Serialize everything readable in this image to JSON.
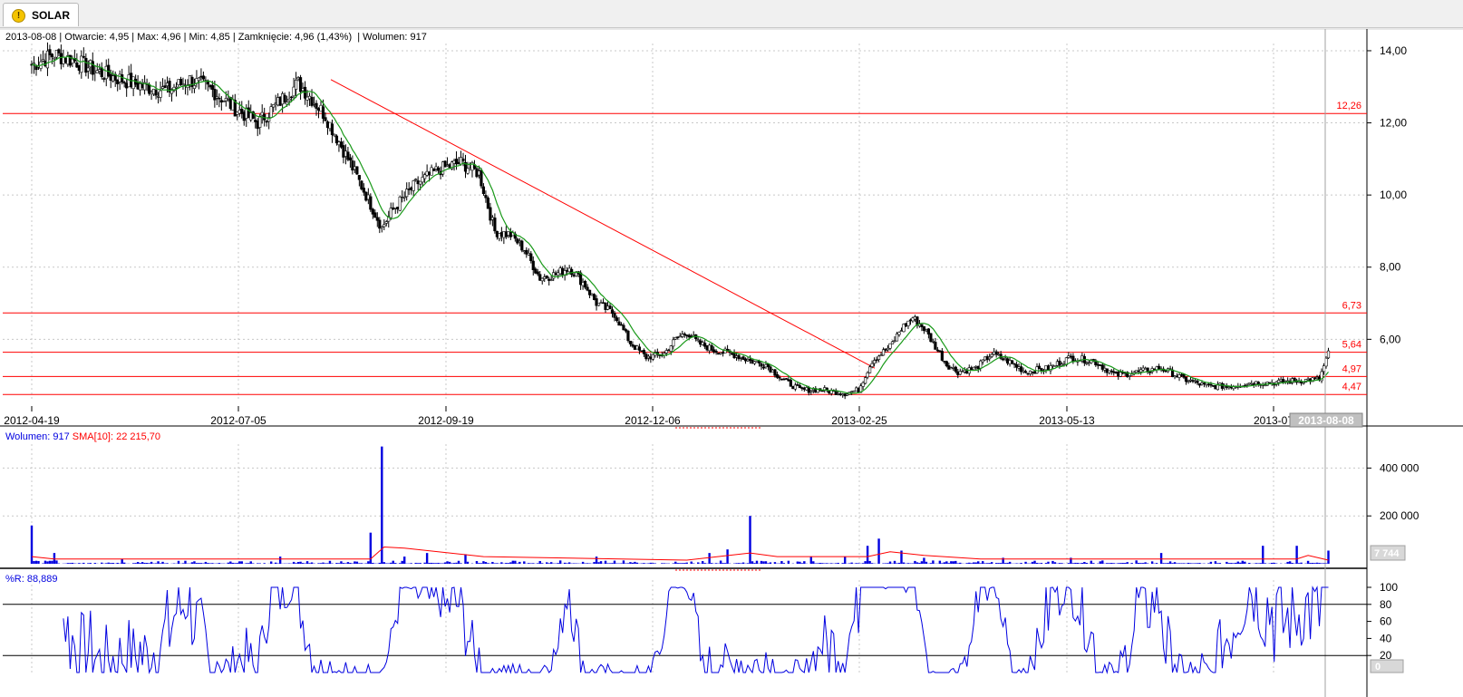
{
  "tab": {
    "label": "SOLAR",
    "icon": "exclamation-icon"
  },
  "info": {
    "date": "2013-08-08",
    "open_label": "Otwarcie:",
    "open": "4,95",
    "max_label": "Max:",
    "max": "4,96",
    "min_label": "Min:",
    "min": "4,85",
    "close_label": "Zamknięcie:",
    "close": "4,96 (1,43%)",
    "volume_label": "Wolumen:",
    "volume": "917"
  },
  "volume_legend": {
    "volume": "Wolumen: 917",
    "sma": "SMA[10]: 22 215,70"
  },
  "wr_legend": "%R: 88,889",
  "colors": {
    "up": "#ffffff",
    "down": "#000000",
    "ma": "#1a9a1a",
    "level": "#ff0000",
    "volume": "#0000e0",
    "sma": "#ff0000",
    "wr": "#0000e0",
    "grid": "#c8c8c8"
  },
  "chart_data": [
    {
      "type": "candlestick",
      "ylim": [
        4.3,
        14.2
      ],
      "y_ticks": [
        "14,00",
        "12,00",
        "10,00",
        "8,00",
        "6,00"
      ],
      "x_ticks": [
        "2012-04-19",
        "2012-07-05",
        "2012-09-19",
        "2012-12-06",
        "2013-02-25",
        "2013-05-13",
        "2013-07"
      ],
      "cursor_label": "2013-08-08",
      "levels": [
        {
          "label": "12,26",
          "value": 12.26
        },
        {
          "label": "6,73",
          "value": 6.73
        },
        {
          "label": "5,64",
          "value": 5.64
        },
        {
          "label": "4,97",
          "value": 4.97
        },
        {
          "label": "4,47",
          "value": 4.47
        }
      ],
      "trendline": {
        "from": [
          "2012-08-01",
          13.2
        ],
        "to": [
          "2013-02-27",
          5.4
        ]
      },
      "ma_color": "green",
      "close_path": [
        [
          0,
          13.6
        ],
        [
          10,
          13.9
        ],
        [
          20,
          13.7
        ],
        [
          30,
          13.4
        ],
        [
          40,
          13.2
        ],
        [
          50,
          13.0
        ],
        [
          60,
          12.9
        ],
        [
          70,
          13.2
        ],
        [
          80,
          12.9
        ],
        [
          90,
          12.4
        ],
        [
          100,
          12.0
        ],
        [
          110,
          12.6
        ],
        [
          118,
          13.1
        ],
        [
          125,
          12.6
        ],
        [
          130,
          12.2
        ],
        [
          135,
          11.6
        ],
        [
          140,
          11.0
        ],
        [
          148,
          10.0
        ],
        [
          155,
          9.1
        ],
        [
          160,
          9.6
        ],
        [
          170,
          10.3
        ],
        [
          180,
          10.7
        ],
        [
          190,
          10.9
        ],
        [
          198,
          10.6
        ],
        [
          205,
          9.0
        ],
        [
          212,
          8.9
        ],
        [
          218,
          8.5
        ],
        [
          225,
          7.7
        ],
        [
          232,
          7.8
        ],
        [
          238,
          8.0
        ],
        [
          245,
          7.5
        ],
        [
          250,
          7.0
        ],
        [
          258,
          6.7
        ],
        [
          265,
          5.9
        ],
        [
          272,
          5.5
        ],
        [
          280,
          5.6
        ],
        [
          285,
          6.0
        ],
        [
          290,
          6.2
        ],
        [
          295,
          5.9
        ],
        [
          302,
          5.7
        ],
        [
          310,
          5.6
        ],
        [
          318,
          5.4
        ],
        [
          325,
          5.3
        ],
        [
          332,
          4.9
        ],
        [
          340,
          4.6
        ],
        [
          350,
          4.6
        ],
        [
          360,
          4.5
        ],
        [
          366,
          4.6
        ],
        [
          372,
          5.4
        ],
        [
          380,
          5.8
        ],
        [
          385,
          6.3
        ],
        [
          390,
          6.6
        ],
        [
          395,
          6.3
        ],
        [
          400,
          5.8
        ],
        [
          405,
          5.3
        ],
        [
          410,
          5.1
        ],
        [
          418,
          5.2
        ],
        [
          425,
          5.6
        ],
        [
          432,
          5.4
        ],
        [
          440,
          5.1
        ],
        [
          450,
          5.2
        ],
        [
          460,
          5.5
        ],
        [
          470,
          5.4
        ],
        [
          480,
          5.0
        ],
        [
          490,
          5.1
        ],
        [
          500,
          5.2
        ],
        [
          510,
          4.9
        ],
        [
          520,
          4.7
        ],
        [
          530,
          4.7
        ],
        [
          540,
          4.8
        ],
        [
          550,
          4.8
        ],
        [
          560,
          4.85
        ],
        [
          570,
          4.9
        ],
        [
          574,
          5.6
        ]
      ]
    },
    {
      "type": "bar",
      "name": "Wolumen",
      "ylim": [
        0,
        500000
      ],
      "y_ticks": [
        "400 000",
        "200 000"
      ],
      "last_label": "7 744",
      "spikes": [
        [
          0,
          160000
        ],
        [
          10,
          45000
        ],
        [
          40,
          20000
        ],
        [
          110,
          30000
        ],
        [
          150,
          130000
        ],
        [
          155,
          490000
        ],
        [
          165,
          30000
        ],
        [
          175,
          45000
        ],
        [
          192,
          40000
        ],
        [
          250,
          30000
        ],
        [
          300,
          45000
        ],
        [
          308,
          60000
        ],
        [
          318,
          200000
        ],
        [
          345,
          30000
        ],
        [
          360,
          30000
        ],
        [
          370,
          75000
        ],
        [
          375,
          105000
        ],
        [
          385,
          55000
        ],
        [
          395,
          25000
        ],
        [
          430,
          25000
        ],
        [
          460,
          25000
        ],
        [
          500,
          45000
        ],
        [
          545,
          75000
        ],
        [
          560,
          75000
        ],
        [
          574,
          55000
        ]
      ],
      "sma": [
        [
          0,
          30000
        ],
        [
          10,
          20000
        ],
        [
          150,
          20000
        ],
        [
          156,
          70000
        ],
        [
          165,
          65000
        ],
        [
          200,
          30000
        ],
        [
          290,
          15000
        ],
        [
          318,
          45000
        ],
        [
          330,
          30000
        ],
        [
          370,
          30000
        ],
        [
          380,
          50000
        ],
        [
          395,
          35000
        ],
        [
          420,
          20000
        ],
        [
          560,
          20000
        ],
        [
          565,
          35000
        ],
        [
          574,
          15000
        ]
      ]
    },
    {
      "type": "line",
      "name": "%R",
      "ylim": [
        0,
        100
      ],
      "y_ticks": [
        "100",
        "80",
        "60",
        "40",
        "20"
      ],
      "last_label": "0",
      "levels": [
        80,
        20
      ]
    }
  ]
}
